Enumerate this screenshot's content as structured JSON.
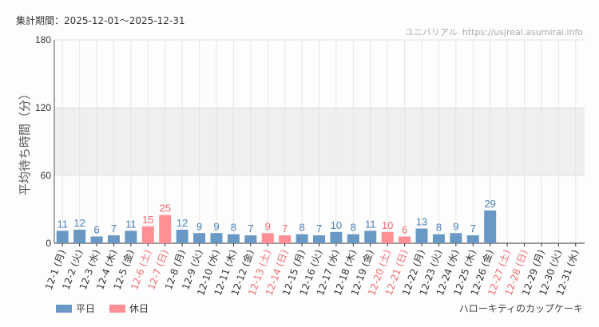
{
  "header": {
    "period_label": "集計期間：",
    "period_value": "2025-12-01〜2025-12-31",
    "site_name": "ユニバリアル",
    "site_url": "https://usjreal.asumirai.info"
  },
  "footer": {
    "attraction": "ハローキティのカップケーキ"
  },
  "colors": {
    "weekday": "#6a98c5",
    "holiday": "#ff8f94",
    "weekday_text": "#4a7fb5",
    "holiday_text": "#f26c72",
    "band": "#efefef"
  },
  "chart_data": {
    "type": "bar",
    "ylabel": "平均待ち時間（分）",
    "ylim": [
      0,
      180
    ],
    "yticks": [
      0,
      60,
      120,
      180
    ],
    "shaded_band": [
      60,
      120
    ],
    "grid": "vertical",
    "legend": [
      {
        "name": "平日",
        "key": "weekday"
      },
      {
        "name": "休日",
        "key": "holiday"
      }
    ],
    "legend_position": "bottom-left",
    "categories": [
      "12-1 (月)",
      "12-2 (火)",
      "12-3 (水)",
      "12-4 (木)",
      "12-5 (金)",
      "12-6 (土)",
      "12-7 (日)",
      "12-8 (月)",
      "12-9 (火)",
      "12-10 (水)",
      "12-11 (木)",
      "12-12 (金)",
      "12-13 (土)",
      "12-14 (日)",
      "12-15 (月)",
      "12-16 (火)",
      "12-17 (水)",
      "12-18 (木)",
      "12-19 (金)",
      "12-20 (土)",
      "12-21 (日)",
      "12-22 (月)",
      "12-23 (火)",
      "12-24 (水)",
      "12-25 (木)",
      "12-26 (金)",
      "12-27 (土)",
      "12-28 (日)",
      "12-29 (月)",
      "12-30 (火)",
      "12-31 (水)"
    ],
    "day_type": [
      "weekday",
      "weekday",
      "weekday",
      "weekday",
      "weekday",
      "holiday",
      "holiday",
      "weekday",
      "weekday",
      "weekday",
      "weekday",
      "weekday",
      "holiday",
      "holiday",
      "weekday",
      "weekday",
      "weekday",
      "weekday",
      "weekday",
      "holiday",
      "holiday",
      "weekday",
      "weekday",
      "weekday",
      "weekday",
      "weekday",
      "holiday",
      "holiday",
      "weekday",
      "weekday",
      "weekday"
    ],
    "values": [
      11,
      12,
      6,
      7,
      11,
      15,
      25,
      12,
      9,
      9,
      8,
      7,
      9,
      7,
      8,
      7,
      10,
      8,
      11,
      10,
      6,
      13,
      8,
      9,
      7,
      29,
      null,
      null,
      null,
      null,
      null
    ]
  }
}
